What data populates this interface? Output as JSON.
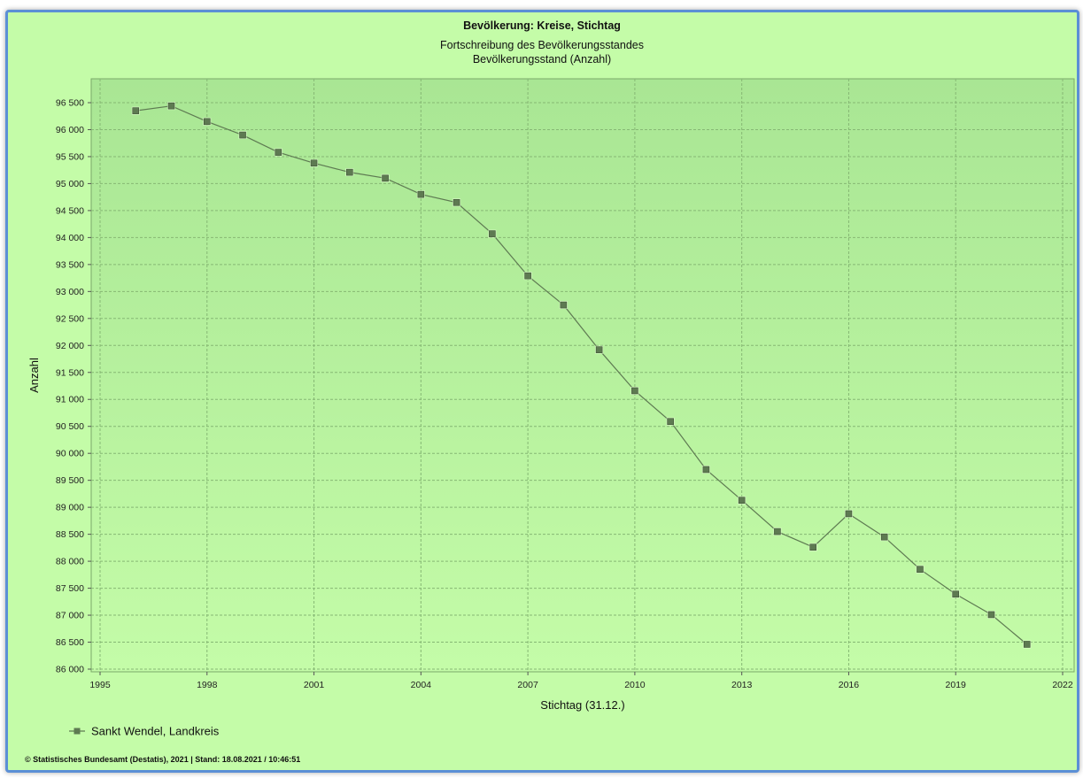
{
  "chart_data": {
    "type": "line",
    "title": "Bevölkerung: Kreise, Stichtag",
    "subtitle": "Fortschreibung des Bevölkerungsstandes",
    "subtitle2": "Bevölkerungsstand (Anzahl)",
    "xlabel": "Stichtag (31.12.)",
    "ylabel": "Anzahl",
    "xlim": [
      1995,
      2022
    ],
    "ylim": [
      86000,
      96500
    ],
    "x_ticks": [
      1995,
      1998,
      2001,
      2004,
      2007,
      2010,
      2013,
      2016,
      2019,
      2022
    ],
    "x_tick_labels": [
      "1995",
      "1998",
      "2001",
      "2004",
      "2007",
      "2010",
      "2013",
      "2016",
      "2019",
      "2022"
    ],
    "y_ticks": [
      86000,
      86500,
      87000,
      87500,
      88000,
      88500,
      89000,
      89500,
      90000,
      90500,
      91000,
      91500,
      92000,
      92500,
      93000,
      93500,
      94000,
      94500,
      95000,
      95500,
      96000,
      96500
    ],
    "y_tick_labels": [
      "86 000",
      "86 500",
      "87 000",
      "87 500",
      "88 000",
      "88 500",
      "89 000",
      "89 500",
      "90 000",
      "90 500",
      "91 000",
      "91 500",
      "92 000",
      "92 500",
      "93 000",
      "93 500",
      "94 000",
      "94 500",
      "95 000",
      "95 500",
      "96 000",
      "96 500"
    ],
    "grid": true,
    "legend_position": "bottom-left",
    "series": [
      {
        "name": "Sankt Wendel, Landkreis",
        "color": "#5e7a52",
        "x": [
          1996,
          1997,
          1998,
          1999,
          2000,
          2001,
          2002,
          2003,
          2004,
          2005,
          2006,
          2007,
          2008,
          2009,
          2010,
          2011,
          2012,
          2013,
          2014,
          2015,
          2016,
          2017,
          2018,
          2019,
          2020,
          2021
        ],
        "values": [
          96350,
          96440,
          96150,
          95900,
          95580,
          95380,
          95210,
          95100,
          94800,
          94650,
          94070,
          93290,
          92750,
          91920,
          91160,
          90590,
          89700,
          89130,
          88550,
          88260,
          88880,
          88450,
          87850,
          87390,
          87010,
          86460
        ]
      }
    ]
  },
  "footer": "© Statistisches Bundesamt (Destatis), 2021 | Stand: 18.08.2021 / 10:46:51",
  "colors": {
    "background": "#c4fca8",
    "plot_background_top": "#a9e694",
    "plot_background_bottom": "#c4fca8",
    "frame_border": "#5b8fd6",
    "grid": "#86b874",
    "line": "#5e7a52",
    "marker": "#5e7a52"
  }
}
